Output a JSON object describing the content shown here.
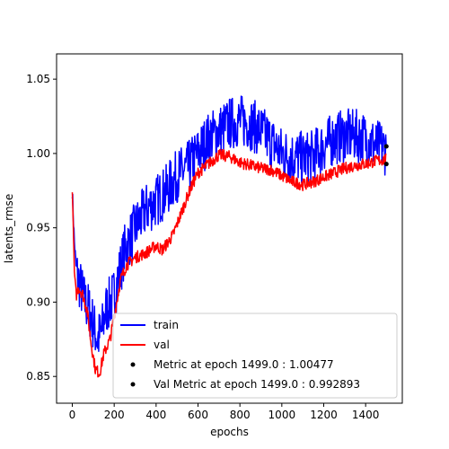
{
  "chart_data": {
    "type": "line",
    "title": "",
    "xlabel": "epochs",
    "ylabel": "latents_rmse",
    "xlim": [
      -75,
      1575
    ],
    "ylim": [
      0.832,
      1.067
    ],
    "xticks": [
      0,
      200,
      400,
      600,
      800,
      1000,
      1200,
      1400
    ],
    "yticks": [
      0.85,
      0.9,
      0.95,
      1.0,
      1.05
    ],
    "ytick_labels": [
      "0.85",
      "0.90",
      "0.95",
      "1.00",
      "1.05"
    ],
    "grid": false,
    "legend_position": "lower-right",
    "series": [
      {
        "name": "train",
        "color": "#0000ff",
        "noise": 0.018,
        "x": [
          0,
          10,
          20,
          40,
          60,
          80,
          100,
          120,
          140,
          160,
          200,
          250,
          300,
          350,
          400,
          450,
          500,
          550,
          600,
          650,
          700,
          750,
          800,
          850,
          900,
          950,
          1000,
          1050,
          1100,
          1150,
          1200,
          1250,
          1300,
          1350,
          1400,
          1450,
          1499
        ],
        "y": [
          0.975,
          0.94,
          0.92,
          0.91,
          0.9,
          0.895,
          0.885,
          0.875,
          0.88,
          0.895,
          0.905,
          0.935,
          0.95,
          0.962,
          0.968,
          0.975,
          0.985,
          0.99,
          1.0,
          1.01,
          1.015,
          1.02,
          1.022,
          1.02,
          1.015,
          1.008,
          1.0,
          0.998,
          0.997,
          0.998,
          1.005,
          1.01,
          1.012,
          1.012,
          1.01,
          1.005,
          1.003
        ]
      },
      {
        "name": "val",
        "color": "#ff0000",
        "noise": 0.004,
        "x": [
          0,
          5,
          10,
          20,
          30,
          50,
          70,
          90,
          110,
          130,
          150,
          180,
          200,
          230,
          260,
          300,
          350,
          400,
          430,
          480,
          520,
          560,
          600,
          650,
          700,
          750,
          800,
          850,
          900,
          950,
          1000,
          1050,
          1100,
          1150,
          1200,
          1250,
          1300,
          1350,
          1400,
          1450,
          1499
        ],
        "y": [
          0.975,
          0.95,
          0.92,
          0.905,
          0.91,
          0.905,
          0.895,
          0.872,
          0.855,
          0.852,
          0.865,
          0.875,
          0.89,
          0.915,
          0.925,
          0.93,
          0.933,
          0.938,
          0.935,
          0.945,
          0.96,
          0.975,
          0.987,
          0.993,
          0.999,
          0.998,
          0.994,
          0.992,
          0.99,
          0.989,
          0.985,
          0.981,
          0.979,
          0.981,
          0.984,
          0.987,
          0.99,
          0.992,
          0.993,
          0.995,
          0.996
        ]
      }
    ],
    "points": [
      {
        "name": "Metric at epoch 1499.0 : 1.00477",
        "x": 1499,
        "y": 1.00477,
        "color": "#000000"
      },
      {
        "name": "Val Metric at epoch 1499.0 : 0.992893",
        "x": 1499,
        "y": 0.992893,
        "color": "#000000"
      }
    ]
  }
}
